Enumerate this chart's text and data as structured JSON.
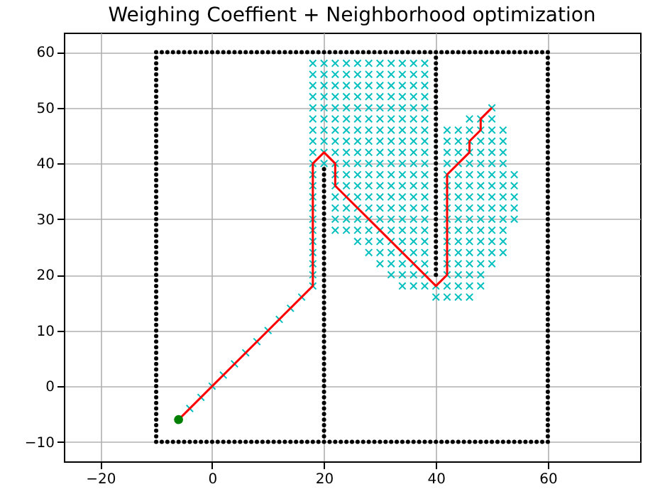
{
  "chart_data": {
    "type": "scatter",
    "title": "Weighing Coeffient + Neighborhood optimization",
    "xlim": [
      -26.5,
      76.5
    ],
    "ylim": [
      -13.5,
      63.5
    ],
    "xticks": [
      -20,
      0,
      20,
      40,
      60
    ],
    "yticks": [
      -10,
      0,
      10,
      20,
      30,
      40,
      50,
      60
    ],
    "grid": true,
    "series": [
      {
        "marker": "cross",
        "color": "#00bfbf",
        "x": [
          18,
          20,
          22,
          24,
          26,
          28,
          30,
          32,
          34,
          36,
          38,
          18,
          20,
          22,
          24,
          26,
          28,
          30,
          32,
          34,
          36,
          38,
          18,
          20,
          22,
          24,
          26,
          28,
          30,
          32,
          34,
          36,
          38,
          18,
          20,
          22,
          24,
          26,
          28,
          30,
          32,
          34,
          36,
          38,
          18,
          20,
          22,
          24,
          26,
          28,
          30,
          32,
          34,
          36,
          38,
          50,
          18,
          20,
          22,
          24,
          26,
          28,
          30,
          32,
          34,
          36,
          38,
          46,
          48,
          50,
          18,
          20,
          22,
          24,
          26,
          28,
          30,
          32,
          34,
          36,
          38,
          42,
          44,
          46,
          48,
          50,
          52,
          18,
          20,
          22,
          24,
          26,
          28,
          30,
          32,
          34,
          36,
          38,
          42,
          44,
          46,
          48,
          50,
          52,
          18,
          20,
          22,
          24,
          26,
          28,
          30,
          32,
          34,
          36,
          38,
          42,
          44,
          46,
          48,
          50,
          52,
          18,
          20,
          22,
          24,
          26,
          28,
          30,
          32,
          34,
          36,
          38,
          42,
          44,
          46,
          48,
          50,
          52,
          18,
          22,
          24,
          26,
          28,
          30,
          32,
          34,
          36,
          38,
          42,
          44,
          46,
          48,
          50,
          52,
          54,
          18,
          22,
          24,
          26,
          28,
          30,
          32,
          34,
          36,
          38,
          42,
          44,
          46,
          48,
          50,
          52,
          54,
          18,
          22,
          24,
          26,
          28,
          30,
          32,
          34,
          36,
          38,
          42,
          44,
          46,
          48,
          50,
          52,
          54,
          18,
          22,
          24,
          26,
          28,
          30,
          32,
          34,
          36,
          38,
          42,
          44,
          46,
          48,
          50,
          52,
          54,
          18,
          22,
          24,
          26,
          28,
          30,
          32,
          34,
          36,
          38,
          42,
          44,
          46,
          48,
          50,
          52,
          54,
          18,
          22,
          24,
          26,
          28,
          30,
          32,
          34,
          36,
          38,
          42,
          44,
          46,
          48,
          50,
          52,
          18,
          26,
          28,
          30,
          32,
          34,
          36,
          38,
          42,
          44,
          46,
          48,
          50,
          52,
          18,
          28,
          30,
          32,
          34,
          36,
          38,
          42,
          44,
          46,
          48,
          50,
          52,
          18,
          30,
          32,
          34,
          36,
          38,
          42,
          44,
          46,
          48,
          50,
          18,
          32,
          34,
          36,
          38,
          42,
          44,
          46,
          48,
          18,
          34,
          36,
          38,
          40,
          42,
          44,
          46,
          48,
          40,
          42,
          44,
          46,
          -4,
          -2,
          0,
          2,
          4,
          6,
          8,
          10,
          12,
          14,
          16
        ],
        "values": [
          58,
          58,
          58,
          58,
          58,
          58,
          58,
          58,
          58,
          58,
          58,
          56,
          56,
          56,
          56,
          56,
          56,
          56,
          56,
          56,
          56,
          56,
          54,
          54,
          54,
          54,
          54,
          54,
          54,
          54,
          54,
          54,
          54,
          52,
          52,
          52,
          52,
          52,
          52,
          52,
          52,
          52,
          52,
          52,
          50,
          50,
          50,
          50,
          50,
          50,
          50,
          50,
          50,
          50,
          50,
          50,
          48,
          48,
          48,
          48,
          48,
          48,
          48,
          48,
          48,
          48,
          48,
          48,
          48,
          48,
          46,
          46,
          46,
          46,
          46,
          46,
          46,
          46,
          46,
          46,
          46,
          46,
          46,
          46,
          46,
          46,
          46,
          44,
          44,
          44,
          44,
          44,
          44,
          44,
          44,
          44,
          44,
          44,
          44,
          44,
          44,
          44,
          44,
          44,
          42,
          42,
          42,
          42,
          42,
          42,
          42,
          42,
          42,
          42,
          42,
          42,
          42,
          42,
          42,
          42,
          42,
          40,
          40,
          40,
          40,
          40,
          40,
          40,
          40,
          40,
          40,
          40,
          40,
          40,
          40,
          40,
          40,
          40,
          38,
          38,
          38,
          38,
          38,
          38,
          38,
          38,
          38,
          38,
          38,
          38,
          38,
          38,
          38,
          38,
          38,
          36,
          36,
          36,
          36,
          36,
          36,
          36,
          36,
          36,
          36,
          36,
          36,
          36,
          36,
          36,
          36,
          36,
          34,
          34,
          34,
          34,
          34,
          34,
          34,
          34,
          34,
          34,
          34,
          34,
          34,
          34,
          34,
          34,
          34,
          32,
          32,
          32,
          32,
          32,
          32,
          32,
          32,
          32,
          32,
          32,
          32,
          32,
          32,
          32,
          32,
          32,
          30,
          30,
          30,
          30,
          30,
          30,
          30,
          30,
          30,
          30,
          30,
          30,
          30,
          30,
          30,
          30,
          30,
          28,
          28,
          28,
          28,
          28,
          28,
          28,
          28,
          28,
          28,
          28,
          28,
          28,
          28,
          28,
          28,
          26,
          26,
          26,
          26,
          26,
          26,
          26,
          26,
          26,
          26,
          26,
          26,
          26,
          26,
          24,
          24,
          24,
          24,
          24,
          24,
          24,
          24,
          24,
          24,
          24,
          24,
          24,
          22,
          22,
          22,
          22,
          22,
          22,
          22,
          22,
          22,
          22,
          22,
          20,
          20,
          20,
          20,
          20,
          20,
          20,
          20,
          20,
          18,
          18,
          18,
          18,
          18,
          18,
          18,
          18,
          18,
          16,
          16,
          16,
          16,
          -4,
          -2,
          0,
          2,
          4,
          6,
          8,
          10,
          12,
          14,
          16
        ]
      },
      {
        "type": "scatter",
        "marker": "circle",
        "color": "#000000",
        "x": [
          -10,
          -9,
          -8,
          -7,
          -6,
          -5,
          -4,
          -3,
          -2,
          -1,
          0,
          1,
          2,
          3,
          4,
          5,
          6,
          7,
          8,
          9,
          10,
          11,
          12,
          13,
          14,
          15,
          16,
          17,
          18,
          19,
          20,
          21,
          22,
          23,
          24,
          25,
          26,
          27,
          28,
          29,
          30,
          31,
          32,
          33,
          34,
          35,
          36,
          37,
          38,
          39,
          40,
          41,
          42,
          43,
          44,
          45,
          46,
          47,
          48,
          49,
          50,
          51,
          52,
          53,
          54,
          55,
          56,
          57,
          58,
          59,
          60
        ],
        "values": [
          -10,
          -10,
          -10,
          -10,
          -10,
          -10,
          -10,
          -10,
          -10,
          -10,
          -10,
          -10,
          -10,
          -10,
          -10,
          -10,
          -10,
          -10,
          -10,
          -10,
          -10,
          -10,
          -10,
          -10,
          -10,
          -10,
          -10,
          -10,
          -10,
          -10,
          -10,
          -10,
          -10,
          -10,
          -10,
          -10,
          -10,
          -10,
          -10,
          -10,
          -10,
          -10,
          -10,
          -10,
          -10,
          -10,
          -10,
          -10,
          -10,
          -10,
          -10,
          -10,
          -10,
          -10,
          -10,
          -10,
          -10,
          -10,
          -10,
          -10,
          -10,
          -10,
          -10,
          -10,
          -10,
          -10,
          -10,
          -10,
          -10,
          -10,
          -10
        ]
      },
      {
        "type": "scatter",
        "marker": "circle",
        "color": "#000000",
        "x": [
          -10,
          -9,
          -8,
          -7,
          -6,
          -5,
          -4,
          -3,
          -2,
          -1,
          0,
          1,
          2,
          3,
          4,
          5,
          6,
          7,
          8,
          9,
          10,
          11,
          12,
          13,
          14,
          15,
          16,
          17,
          18,
          19,
          20,
          21,
          22,
          23,
          24,
          25,
          26,
          27,
          28,
          29,
          30,
          31,
          32,
          33,
          34,
          35,
          36,
          37,
          38,
          39,
          40,
          41,
          42,
          43,
          44,
          45,
          46,
          47,
          48,
          49,
          50,
          51,
          52,
          53,
          54,
          55,
          56,
          57,
          58,
          59,
          60
        ],
        "values": [
          60,
          60,
          60,
          60,
          60,
          60,
          60,
          60,
          60,
          60,
          60,
          60,
          60,
          60,
          60,
          60,
          60,
          60,
          60,
          60,
          60,
          60,
          60,
          60,
          60,
          60,
          60,
          60,
          60,
          60,
          60,
          60,
          60,
          60,
          60,
          60,
          60,
          60,
          60,
          60,
          60,
          60,
          60,
          60,
          60,
          60,
          60,
          60,
          60,
          60,
          60,
          60,
          60,
          60,
          60,
          60,
          60,
          60,
          60,
          60,
          60,
          60,
          60,
          60,
          60,
          60,
          60,
          60,
          60,
          60,
          60
        ]
      },
      {
        "type": "scatter",
        "marker": "circle",
        "color": "#000000",
        "x": [
          -10,
          -10,
          -10,
          -10,
          -10,
          -10,
          -10,
          -10,
          -10,
          -10,
          -10,
          -10,
          -10,
          -10,
          -10,
          -10,
          -10,
          -10,
          -10,
          -10,
          -10,
          -10,
          -10,
          -10,
          -10,
          -10,
          -10,
          -10,
          -10,
          -10,
          -10,
          -10,
          -10,
          -10,
          -10,
          -10,
          -10,
          -10,
          -10,
          -10,
          -10,
          -10,
          -10,
          -10,
          -10,
          -10,
          -10,
          -10,
          -10,
          -10,
          -10,
          -10,
          -10,
          -10,
          -10,
          -10,
          -10,
          -10,
          -10,
          -10,
          -10,
          -10,
          -10,
          -10,
          -10,
          -10,
          -10,
          -10,
          -10
        ],
        "values": [
          -9,
          -8,
          -7,
          -6,
          -5,
          -4,
          -3,
          -2,
          -1,
          0,
          1,
          2,
          3,
          4,
          5,
          6,
          7,
          8,
          9,
          10,
          11,
          12,
          13,
          14,
          15,
          16,
          17,
          18,
          19,
          20,
          21,
          22,
          23,
          24,
          25,
          26,
          27,
          28,
          29,
          30,
          31,
          32,
          33,
          34,
          35,
          36,
          37,
          38,
          39,
          40,
          41,
          42,
          43,
          44,
          45,
          46,
          47,
          48,
          49,
          50,
          51,
          52,
          53,
          54,
          55,
          56,
          57,
          58,
          59
        ]
      },
      {
        "type": "scatter",
        "marker": "circle",
        "color": "#000000",
        "x": [
          60,
          60,
          60,
          60,
          60,
          60,
          60,
          60,
          60,
          60,
          60,
          60,
          60,
          60,
          60,
          60,
          60,
          60,
          60,
          60,
          60,
          60,
          60,
          60,
          60,
          60,
          60,
          60,
          60,
          60,
          60,
          60,
          60,
          60,
          60,
          60,
          60,
          60,
          60,
          60,
          60,
          60,
          60,
          60,
          60,
          60,
          60,
          60,
          60,
          60,
          60,
          60,
          60,
          60,
          60,
          60,
          60,
          60,
          60,
          60,
          60,
          60,
          60,
          60,
          60,
          60,
          60,
          60,
          60
        ],
        "values": [
          -9,
          -8,
          -7,
          -6,
          -5,
          -4,
          -3,
          -2,
          -1,
          0,
          1,
          2,
          3,
          4,
          5,
          6,
          7,
          8,
          9,
          10,
          11,
          12,
          13,
          14,
          15,
          16,
          17,
          18,
          19,
          20,
          21,
          22,
          23,
          24,
          25,
          26,
          27,
          28,
          29,
          30,
          31,
          32,
          33,
          34,
          35,
          36,
          37,
          38,
          39,
          40,
          41,
          42,
          43,
          44,
          45,
          46,
          47,
          48,
          49,
          50,
          51,
          52,
          53,
          54,
          55,
          56,
          57,
          58,
          59
        ]
      },
      {
        "type": "scatter",
        "marker": "circle",
        "color": "#000000",
        "x": [
          20,
          20,
          20,
          20,
          20,
          20,
          20,
          20,
          20,
          20,
          20,
          20,
          20,
          20,
          20,
          20,
          20,
          20,
          20,
          20,
          20,
          20,
          20,
          20,
          20,
          20,
          20,
          20,
          20,
          20,
          20,
          20,
          20,
          20,
          20,
          20,
          20,
          20,
          20,
          20,
          20,
          20,
          20,
          20,
          20,
          20,
          20,
          20,
          20
        ],
        "values": [
          -9,
          -8,
          -7,
          -6,
          -5,
          -4,
          -3,
          -2,
          -1,
          0,
          1,
          2,
          3,
          4,
          5,
          6,
          7,
          8,
          9,
          10,
          11,
          12,
          13,
          14,
          15,
          16,
          17,
          18,
          19,
          20,
          21,
          22,
          23,
          24,
          25,
          26,
          27,
          28,
          29,
          30,
          31,
          32,
          33,
          34,
          35,
          36,
          37,
          38,
          39
        ]
      },
      {
        "type": "scatter",
        "marker": "circle",
        "color": "#000000",
        "x": [
          40,
          40,
          40,
          40,
          40,
          40,
          40,
          40,
          40,
          40,
          40,
          40,
          40,
          40,
          40,
          40,
          40,
          40,
          40,
          40,
          40,
          40,
          40,
          40,
          40,
          40,
          40,
          40,
          40,
          40,
          40,
          40,
          40,
          40,
          40,
          40,
          40,
          40,
          40,
          40
        ],
        "values": [
          20,
          21,
          22,
          23,
          24,
          25,
          26,
          27,
          28,
          29,
          30,
          31,
          32,
          33,
          34,
          35,
          36,
          37,
          38,
          39,
          40,
          41,
          42,
          43,
          44,
          45,
          46,
          47,
          48,
          49,
          50,
          51,
          52,
          53,
          54,
          55,
          56,
          57,
          58,
          59
        ]
      },
      {
        "type": "line",
        "marker": "none",
        "line_style": "solid",
        "color": "#ff0000",
        "x": [
          -6,
          18,
          18,
          20,
          22,
          22,
          40,
          42,
          42,
          46,
          46,
          48,
          48,
          50
        ],
        "values": [
          -6,
          18,
          40,
          42,
          40,
          36,
          18,
          20,
          38,
          42,
          44,
          46,
          48,
          50
        ]
      },
      {
        "marker": "circle",
        "color": "#008000",
        "x": [
          -6
        ],
        "values": [
          -6
        ]
      }
    ]
  }
}
